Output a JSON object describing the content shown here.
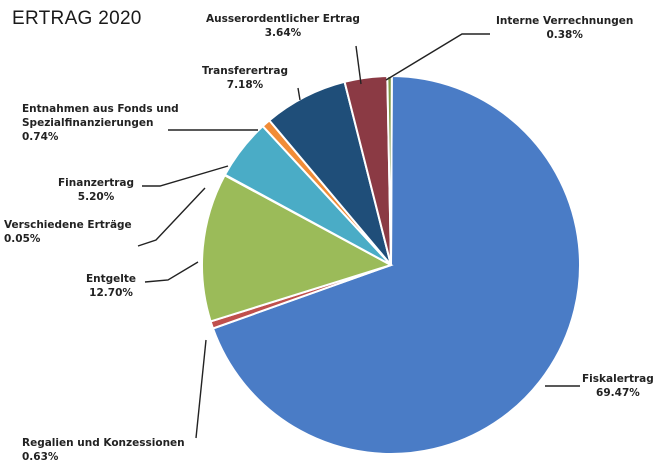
{
  "chart_data": {
    "type": "pie",
    "title": "ERTRAG 2020",
    "slices": [
      {
        "label": "Fiskalertrag",
        "value": 69.47,
        "value_label": "69.47%",
        "color": "#4a7cc6"
      },
      {
        "label": "Regalien und Konzessionen",
        "value": 0.63,
        "value_label": "0.63%",
        "color": "#c0504d"
      },
      {
        "label": "Entgelte",
        "value": 12.7,
        "value_label": "12.70%",
        "color": "#9bbb59"
      },
      {
        "label": "Verschiedene Erträge",
        "value": 0.05,
        "value_label": "0.05%",
        "color": "#7a5fa6"
      },
      {
        "label": "Finanzertrag",
        "value": 5.2,
        "value_label": "5.20%",
        "color": "#4aacc6"
      },
      {
        "label": "Entnahmen aus Fonds und Spezialfinanzierungen",
        "value": 0.74,
        "value_label": "0.74%",
        "color": "#f18c37"
      },
      {
        "label": "Transferertrag",
        "value": 7.18,
        "value_label": "7.18%",
        "color": "#1f4e79"
      },
      {
        "label": "Ausserordentlicher Ertrag",
        "value": 3.64,
        "value_label": "3.64%",
        "color": "#8b3a44"
      },
      {
        "label": "Interne Verrechnungen",
        "value": 0.38,
        "value_label": "0.38%",
        "color": "#7f9a46"
      }
    ]
  },
  "labels": {
    "fiskal": {
      "line1": "Fiskalertrag",
      "line2": "69.47%"
    },
    "regalien": {
      "line1": "Regalien und Konzessionen",
      "line2": "0.63%"
    },
    "entgelte": {
      "line1": "Entgelte",
      "line2": "12.70%"
    },
    "verschiedene": {
      "line1": "Verschiedene Erträge",
      "line2": "0.05%"
    },
    "finanz": {
      "line1": "Finanzertrag",
      "line2": "5.20%"
    },
    "entnahmen": {
      "line1": "Entnahmen aus Fonds und",
      "line2": "Spezialfinanzierungen",
      "line3": "0.74%"
    },
    "transfer": {
      "line1": "Transferertrag",
      "line2": "7.18%"
    },
    "ausser": {
      "line1": "Ausserordentlicher Ertrag",
      "line2": "3.64%"
    },
    "intern": {
      "line1": "Interne Verrechnungen",
      "line2": "0.38%"
    }
  }
}
